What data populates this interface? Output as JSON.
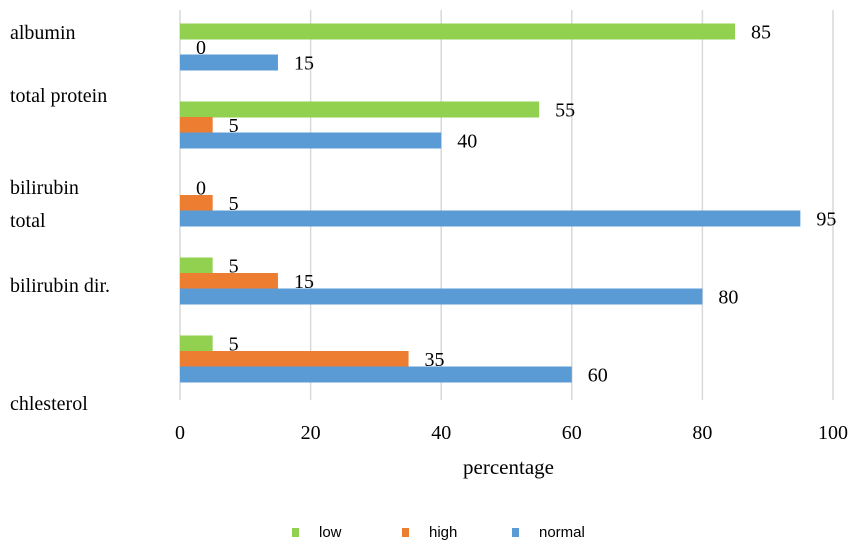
{
  "chart_data": {
    "type": "bar",
    "orientation": "horizontal",
    "categories": [
      "albumin",
      "total protein",
      "bilirubin total",
      "bilirubin dir.",
      "chlesterol"
    ],
    "category_label_lines": [
      [
        "albumin"
      ],
      [
        "total protein"
      ],
      [
        "bilirubin",
        "total"
      ],
      [
        "bilirubin dir."
      ],
      [
        "chlesterol"
      ]
    ],
    "series": [
      {
        "name": "low",
        "color": "#92d050",
        "values": [
          85,
          55,
          0,
          5,
          5
        ]
      },
      {
        "name": "high",
        "color": "#ed7d31",
        "values": [
          0,
          5,
          5,
          15,
          35
        ]
      },
      {
        "name": "normal",
        "color": "#5b9bd5",
        "values": [
          15,
          40,
          95,
          80,
          60
        ]
      }
    ],
    "xlabel": "percentage",
    "ylabel": "",
    "title": "",
    "xlim": [
      0,
      100
    ],
    "xticks": [
      0,
      20,
      40,
      60,
      80,
      100
    ],
    "grid": true,
    "legend_position": "bottom",
    "data_labels": true
  }
}
